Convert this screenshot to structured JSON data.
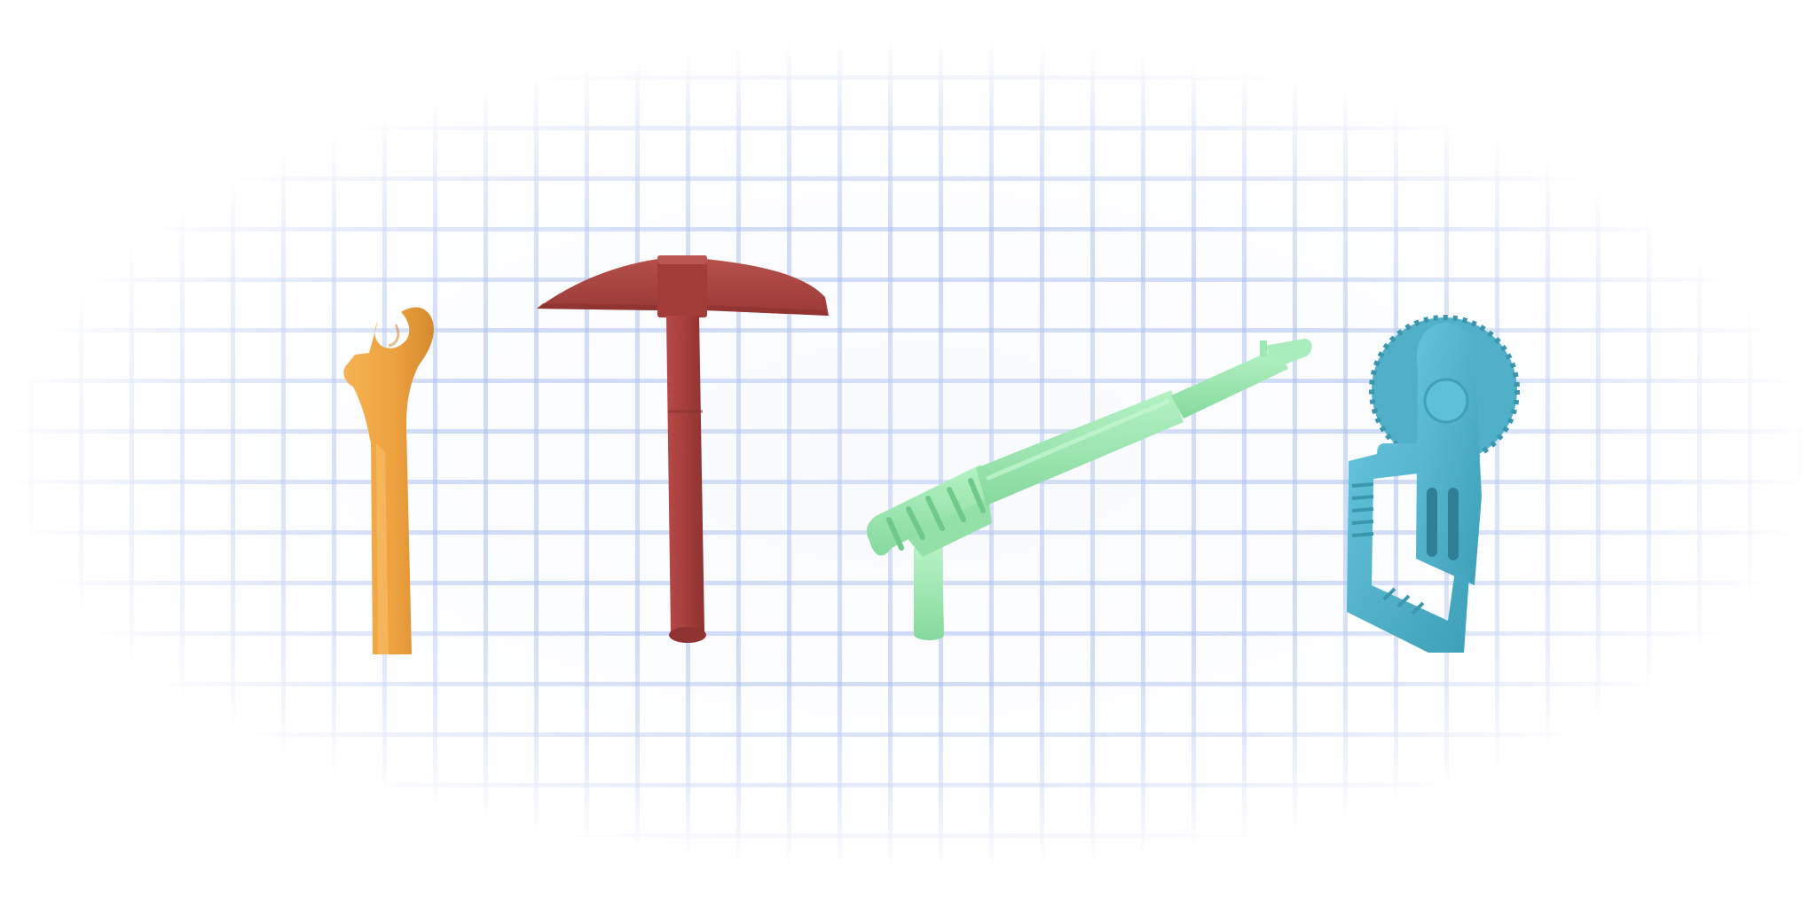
{
  "scene": {
    "background_color": "#ffffff",
    "grid_color": "#a6b8eb"
  },
  "tools": [
    {
      "id": "wrench",
      "icon": "wrench-icon",
      "color": "#eea13f"
    },
    {
      "id": "pickaxe",
      "icon": "pickaxe-icon",
      "color": "#a8403d"
    },
    {
      "id": "blaster",
      "icon": "blaster-icon",
      "color": "#9de8b0"
    },
    {
      "id": "saw-tool",
      "icon": "circular-saw-icon",
      "color": "#4fb4cc"
    }
  ]
}
